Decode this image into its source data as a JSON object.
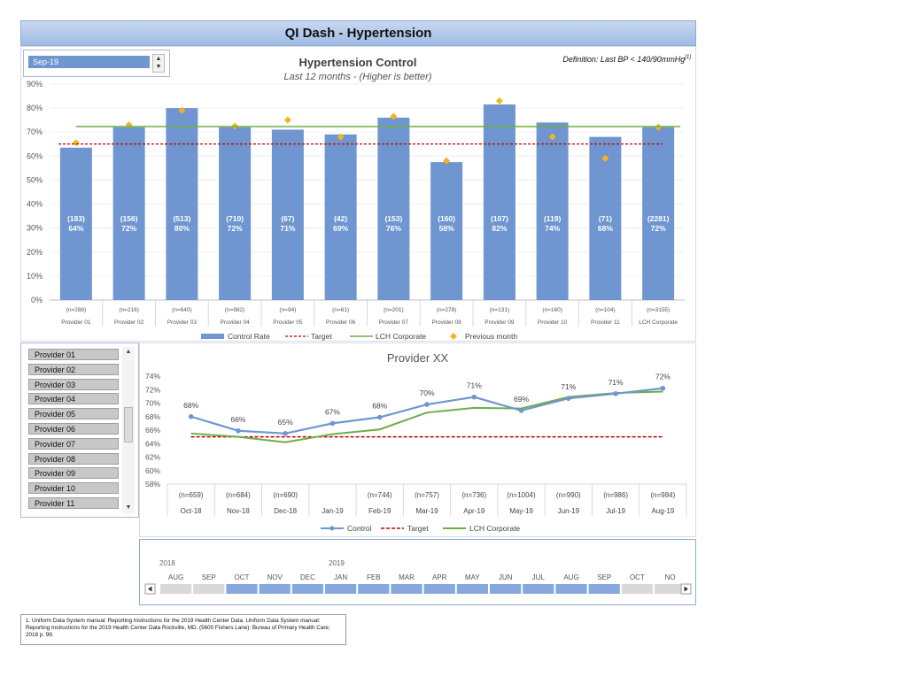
{
  "header": {
    "title": "QI Dash - Hypertension"
  },
  "month_selector": {
    "value": "Sep-19"
  },
  "chart_top": {
    "title": "Hypertension Control",
    "subtitle": "Last 12 months - (Higher is better)",
    "definition": "Definition: Last BP < 140/90mmHg",
    "definition_ref": "[1]"
  },
  "provider_list": {
    "items": [
      "Provider 01",
      "Provider 02",
      "Provider 03",
      "Provider 04",
      "Provider 05",
      "Provider 06",
      "Provider 07",
      "Provider 08",
      "Provider 09",
      "Provider 10",
      "Provider 11"
    ]
  },
  "chart_bottom_title": "Provider XX",
  "timeline": {
    "years": [
      "2018",
      "2019"
    ],
    "months": [
      "AUG",
      "SEP",
      "OCT",
      "NOV",
      "DEC",
      "JAN",
      "FEB",
      "MAR",
      "APR",
      "MAY",
      "JUN",
      "JUL",
      "AUG",
      "SEP",
      "OCT",
      "NO"
    ],
    "selected_count_from": 2,
    "selected_count_to": 13
  },
  "footnote": "1. Uniform Data System manual: Reporting Instructions for the 2019 Health Center Data. Uniform Data System manual: Reporting Instructions for the 2019 Health Center Data Rockville, MD. (5600 Fishers Lane): Bureau of Primary Health Care; 2018 p. 99.",
  "colors": {
    "bar": "#6f96d0",
    "target": "#c00000",
    "lch": "#6fad47",
    "prev": "#f2b51b",
    "control": "#6f96d0"
  },
  "chart_data": [
    {
      "type": "bar",
      "categories": [
        "Provider 01",
        "Provider 02",
        "Provider 03",
        "Provider 04",
        "Provider 05",
        "Provider 06",
        "Provider 07",
        "Provider 08",
        "Provider 09",
        "Provider 10",
        "Provider 11",
        "LCH Corporate"
      ],
      "n_labels": [
        "(n=288)",
        "(n=216)",
        "(n=640)",
        "(n=982)",
        "(n=94)",
        "(n=61)",
        "(n=201)",
        "(n=278)",
        "(n=131)",
        "(n=160)",
        "(n=104)",
        "(n=3155)"
      ],
      "count_labels": [
        "(183)",
        "(156)",
        "(513)",
        "(710)",
        "(67)",
        "(42)",
        "(153)",
        "(160)",
        "(107)",
        "(119)",
        "(71)",
        "(2281)"
      ],
      "value_labels": [
        "64%",
        "72%",
        "80%",
        "72%",
        "71%",
        "69%",
        "76%",
        "58%",
        "82%",
        "74%",
        "68%",
        "72%"
      ],
      "series": [
        {
          "name": "Control Rate",
          "values": [
            63.5,
            72,
            80,
            72,
            71,
            69,
            76,
            57.5,
            81.5,
            74,
            68,
            72
          ]
        },
        {
          "name": "Target",
          "values": [
            65,
            65,
            65,
            65,
            65,
            65,
            65,
            65,
            65,
            65,
            65,
            65
          ]
        },
        {
          "name": "LCH Corporate",
          "values": [
            72.3,
            72.3,
            72.3,
            72.3,
            72.3,
            72.3,
            72.3,
            72.3,
            72.3,
            72.3,
            72.3,
            72.3
          ]
        },
        {
          "name": "Previous month",
          "values": [
            65.5,
            73,
            79,
            72.5,
            75,
            68,
            76.5,
            58,
            83,
            68,
            59,
            72
          ]
        }
      ],
      "yticks": [
        "0%",
        "10%",
        "20%",
        "30%",
        "40%",
        "50%",
        "60%",
        "70%",
        "80%",
        "90%"
      ],
      "ylim": [
        0,
        90
      ]
    },
    {
      "type": "line",
      "categories": [
        "Oct-18",
        "Nov-18",
        "Dec-18",
        "Jan-19",
        "Feb-19",
        "Mar-19",
        "Apr-19",
        "May-19",
        "Jun-19",
        "Jul-19",
        "Aug-19"
      ],
      "n_labels": [
        "(n=659)",
        "(n=684)",
        "(n=690)",
        "",
        "(n=744)",
        "(n=757)",
        "(n=736)",
        "(n=1004)",
        "(n=990)",
        "(n=986)",
        "(n=984)"
      ],
      "value_labels": [
        "68%",
        "66%",
        "65%",
        "67%",
        "68%",
        "70%",
        "71%",
        "69%",
        "71%",
        "71%",
        "72%"
      ],
      "series": [
        {
          "name": "Control",
          "values": [
            68.0,
            65.9,
            65.5,
            67.0,
            67.9,
            69.8,
            70.9,
            68.9,
            70.7,
            71.4,
            72.2
          ]
        },
        {
          "name": "Target",
          "values": [
            65,
            65,
            65,
            65,
            65,
            65,
            65,
            65,
            65,
            65,
            65
          ]
        },
        {
          "name": "LCH Corporate",
          "values": [
            65.5,
            65.0,
            64.2,
            65.4,
            66.1,
            68.6,
            69.3,
            69.2,
            70.9,
            71.5,
            71.7
          ]
        }
      ],
      "yticks": [
        "58%",
        "60%",
        "62%",
        "64%",
        "66%",
        "68%",
        "70%",
        "72%",
        "74%"
      ],
      "ylim": [
        58,
        74
      ]
    }
  ]
}
